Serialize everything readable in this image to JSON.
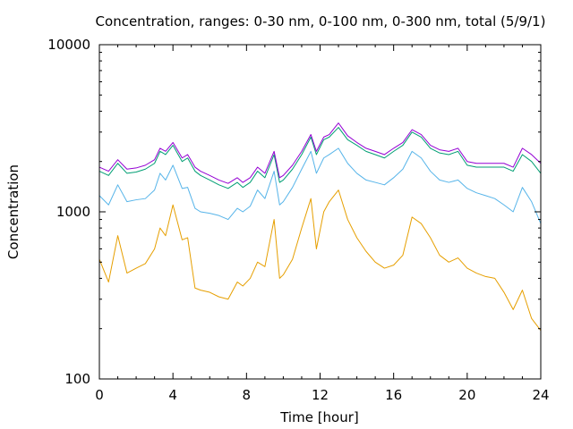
{
  "chart_data": {
    "type": "line",
    "title": "Concentration, ranges: 0-30 nm, 0-100 nm, 0-300 nm, total (5/9/1)",
    "xlabel": "Time [hour]",
    "ylabel": "Concentration",
    "xlim": [
      0,
      24
    ],
    "ylim": [
      100,
      10000
    ],
    "y_scale": "log",
    "grid": false,
    "x_ticks": [
      0,
      4,
      8,
      12,
      16,
      20,
      24
    ],
    "x_tick_labels": [
      "0",
      "4",
      "8",
      "12",
      "16",
      "20",
      "24"
    ],
    "y_ticks": [
      100,
      1000,
      10000
    ],
    "y_tick_labels": [
      "100",
      "1000",
      "10000"
    ],
    "x": [
      0,
      0.5,
      1,
      1.5,
      2,
      2.5,
      3,
      3.3,
      3.6,
      4,
      4.5,
      4.8,
      5.2,
      5.5,
      6,
      6.5,
      7,
      7.5,
      7.8,
      8.2,
      8.6,
      9,
      9.5,
      9.8,
      10,
      10.5,
      11,
      11.5,
      11.8,
      12.2,
      12.5,
      13,
      13.5,
      14,
      14.5,
      15,
      15.5,
      16,
      16.5,
      17,
      17.5,
      18,
      18.5,
      19,
      19.5,
      20,
      20.5,
      21,
      21.5,
      22,
      22.5,
      23,
      23.5,
      24
    ],
    "colors": [
      "#E69F00",
      "#56B4E9",
      "#009E73",
      "#9400D3"
    ],
    "series": [
      {
        "values": [
          520,
          380,
          720,
          430,
          460,
          490,
          600,
          800,
          720,
          1100,
          680,
          700,
          350,
          340,
          330,
          310,
          300,
          380,
          360,
          400,
          500,
          470,
          900,
          400,
          420,
          520,
          800,
          1200,
          600,
          1000,
          1150,
          1350,
          900,
          700,
          580,
          500,
          460,
          480,
          550,
          930,
          850,
          700,
          550,
          500,
          530,
          460,
          430,
          410,
          400,
          330,
          260,
          340,
          230,
          195
        ]
      },
      {
        "values": [
          1250,
          1100,
          1450,
          1150,
          1180,
          1200,
          1350,
          1700,
          1550,
          1900,
          1380,
          1400,
          1050,
          1000,
          980,
          950,
          900,
          1050,
          1000,
          1080,
          1350,
          1200,
          1750,
          1100,
          1150,
          1400,
          1800,
          2300,
          1700,
          2100,
          2200,
          2400,
          1950,
          1700,
          1550,
          1500,
          1450,
          1600,
          1800,
          2300,
          2100,
          1750,
          1550,
          1500,
          1550,
          1380,
          1300,
          1250,
          1200,
          1100,
          1000,
          1400,
          1150,
          850
        ]
      },
      {
        "values": [
          1750,
          1650,
          1950,
          1700,
          1730,
          1800,
          1950,
          2300,
          2200,
          2500,
          2000,
          2100,
          1750,
          1650,
          1550,
          1450,
          1380,
          1500,
          1400,
          1500,
          1750,
          1600,
          2200,
          1500,
          1550,
          1800,
          2200,
          2800,
          2200,
          2700,
          2800,
          3200,
          2700,
          2500,
          2300,
          2200,
          2100,
          2300,
          2500,
          3000,
          2800,
          2400,
          2250,
          2200,
          2300,
          1900,
          1850,
          1850,
          1850,
          1850,
          1750,
          2200,
          2000,
          1700
        ]
      },
      {
        "values": [
          1850,
          1750,
          2050,
          1800,
          1830,
          1900,
          2050,
          2400,
          2300,
          2600,
          2100,
          2200,
          1850,
          1750,
          1650,
          1550,
          1480,
          1600,
          1500,
          1600,
          1850,
          1700,
          2300,
          1600,
          1650,
          1900,
          2300,
          2900,
          2300,
          2800,
          2900,
          3400,
          2850,
          2600,
          2400,
          2300,
          2200,
          2400,
          2600,
          3100,
          2900,
          2500,
          2350,
          2300,
          2400,
          2000,
          1950,
          1950,
          1950,
          1950,
          1850,
          2400,
          2200,
          1950
        ]
      }
    ]
  }
}
